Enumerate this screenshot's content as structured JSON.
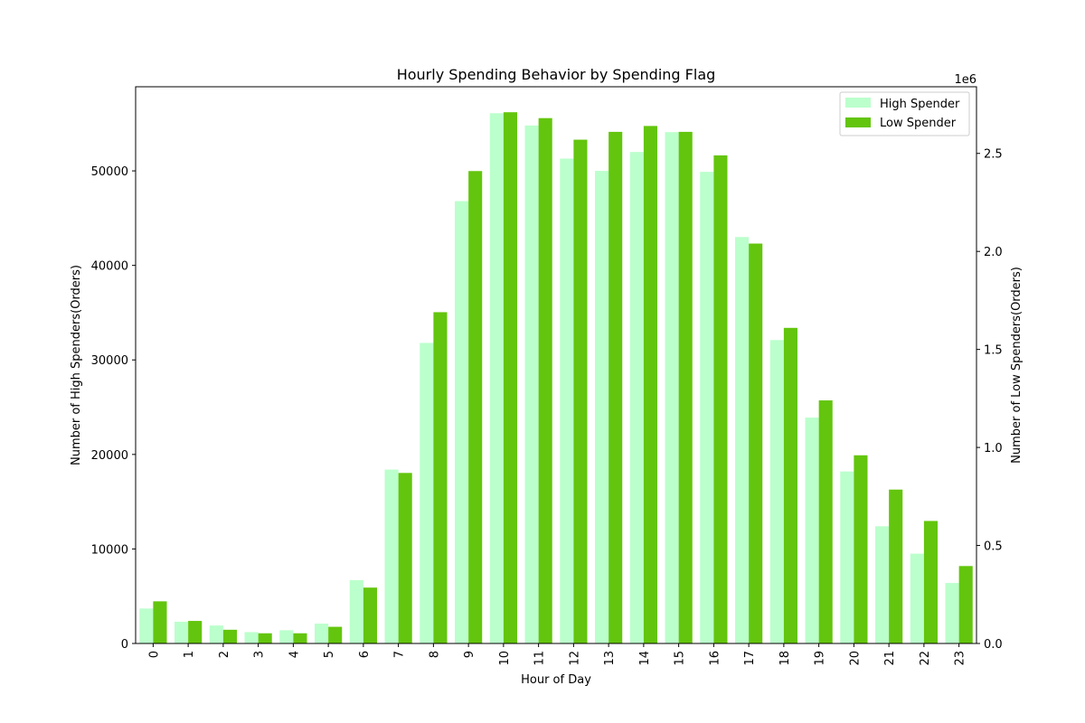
{
  "chart_data": {
    "type": "bar",
    "title": "Hourly Spending Behavior by Spending Flag",
    "xlabel": "Hour of Day",
    "ylabel_left": "Number of High Spenders(Orders)",
    "ylabel_right": "Number of Low Spenders(Orders)",
    "right_axis_offset_label": "1e6",
    "categories": [
      "0",
      "1",
      "2",
      "3",
      "4",
      "5",
      "6",
      "7",
      "8",
      "9",
      "10",
      "11",
      "12",
      "13",
      "14",
      "15",
      "16",
      "17",
      "18",
      "19",
      "20",
      "21",
      "22",
      "23"
    ],
    "series": [
      {
        "name": "High Spender",
        "axis": "left",
        "color": "#bbffcc",
        "values": [
          3700,
          2300,
          1900,
          1200,
          1400,
          2100,
          6700,
          18400,
          31800,
          46800,
          56100,
          54800,
          51300,
          50000,
          52000,
          54100,
          49900,
          43000,
          32100,
          23900,
          18200,
          12400,
          9500,
          6400
        ]
      },
      {
        "name": "Low Spender",
        "axis": "right",
        "color": "#63c50d",
        "values": [
          215000,
          115000,
          70000,
          52000,
          52000,
          85000,
          285000,
          870000,
          1690000,
          2410000,
          2710000,
          2680000,
          2570000,
          2610000,
          2640000,
          2610000,
          2490000,
          2040000,
          1610000,
          1240000,
          960000,
          785000,
          625000,
          395000
        ]
      }
    ],
    "ylim_left": [
      0,
      58900
    ],
    "ylim_right": [
      0,
      2840000
    ],
    "yticks_left": [
      0,
      10000,
      20000,
      30000,
      40000,
      50000
    ],
    "yticks_left_labels": [
      "0",
      "10000",
      "20000",
      "30000",
      "40000",
      "50000"
    ],
    "yticks_right": [
      0,
      500000,
      1000000,
      1500000,
      2000000,
      2500000
    ],
    "yticks_right_labels": [
      "0.0",
      "0.5",
      "1.0",
      "1.5",
      "2.0",
      "2.5"
    ],
    "legend": [
      "High Spender",
      "Low Spender"
    ],
    "legend_position": "top-right",
    "grid": false
  }
}
